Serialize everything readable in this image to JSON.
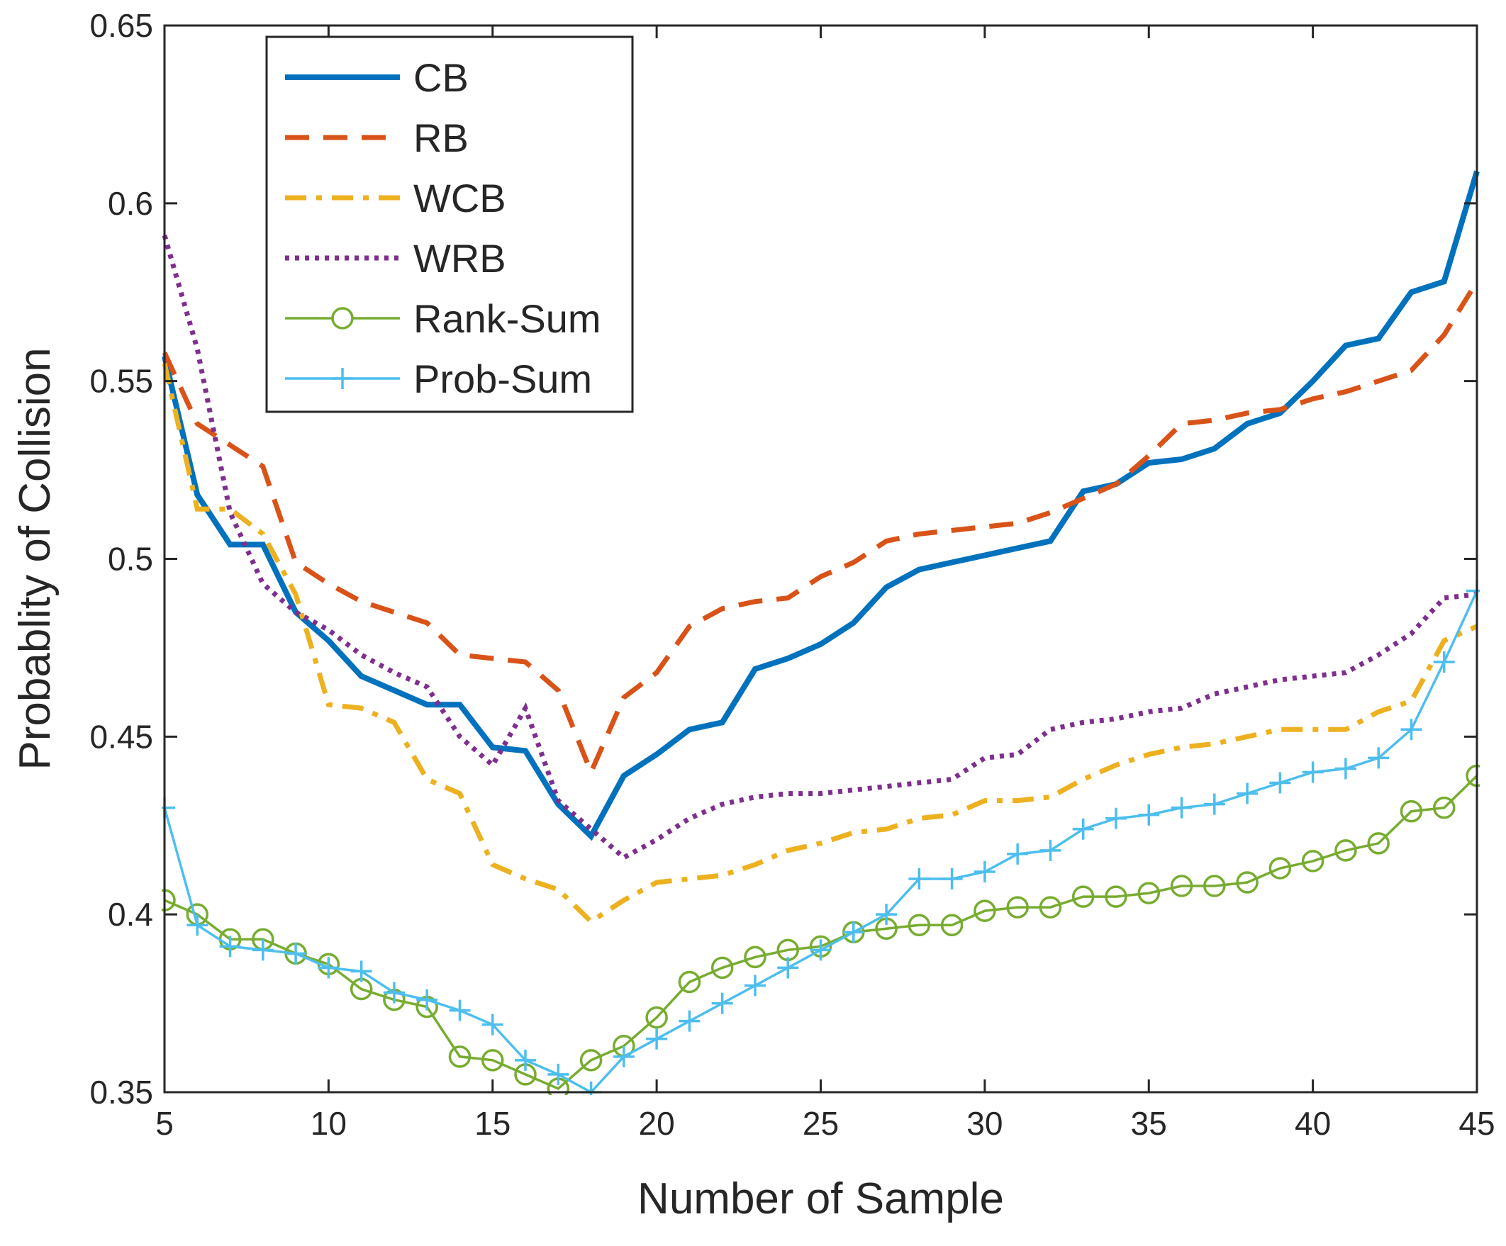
{
  "chart_data": {
    "type": "line",
    "title": "",
    "xlabel": "Number of Sample",
    "ylabel": "Probablity of Collision",
    "xlim": [
      5,
      45
    ],
    "ylim": [
      0.35,
      0.65
    ],
    "xticks": [
      "5",
      "10",
      "15",
      "20",
      "25",
      "30",
      "35",
      "40",
      "45"
    ],
    "yticks": [
      "0.35",
      "0.4",
      "0.45",
      "0.5",
      "0.55",
      "0.6",
      "0.65"
    ],
    "grid": false,
    "legend_position": "top-left",
    "x": [
      5,
      6,
      7,
      8,
      9,
      10,
      11,
      12,
      13,
      14,
      15,
      16,
      17,
      18,
      19,
      20,
      21,
      22,
      23,
      24,
      25,
      26,
      27,
      28,
      29,
      30,
      31,
      32,
      33,
      34,
      35,
      36,
      37,
      38,
      39,
      40,
      41,
      42,
      43,
      44,
      45
    ],
    "series": [
      {
        "name": "CB",
        "color": "#0072BD",
        "style": "solid-thick",
        "marker": "none",
        "values": [
          0.557,
          0.518,
          0.504,
          0.504,
          0.485,
          0.477,
          0.467,
          0.463,
          0.459,
          0.459,
          0.447,
          0.446,
          0.431,
          0.422,
          0.439,
          0.445,
          0.452,
          0.454,
          0.469,
          0.472,
          0.476,
          0.482,
          0.492,
          0.497,
          0.499,
          0.501,
          0.503,
          0.505,
          0.519,
          0.521,
          0.527,
          0.528,
          0.531,
          0.538,
          0.541,
          0.55,
          0.56,
          0.562,
          0.575,
          0.578,
          0.609
        ]
      },
      {
        "name": "RB",
        "color": "#D95319",
        "style": "dashed",
        "marker": "none",
        "values": [
          0.558,
          0.538,
          0.532,
          0.526,
          0.499,
          0.493,
          0.488,
          0.485,
          0.482,
          0.473,
          0.472,
          0.471,
          0.463,
          0.44,
          0.461,
          0.468,
          0.481,
          0.486,
          0.488,
          0.489,
          0.495,
          0.499,
          0.505,
          0.507,
          0.508,
          0.509,
          0.51,
          0.513,
          0.517,
          0.521,
          0.529,
          0.538,
          0.539,
          0.541,
          0.542,
          0.545,
          0.547,
          0.55,
          0.553,
          0.563,
          0.578
        ]
      },
      {
        "name": "WCB",
        "color": "#EDB120",
        "style": "dashdot",
        "marker": "none",
        "values": [
          0.555,
          0.514,
          0.514,
          0.507,
          0.49,
          0.459,
          0.458,
          0.454,
          0.438,
          0.434,
          0.414,
          0.41,
          0.407,
          0.398,
          0.404,
          0.409,
          0.41,
          0.411,
          0.414,
          0.418,
          0.42,
          0.423,
          0.424,
          0.427,
          0.428,
          0.432,
          0.432,
          0.433,
          0.438,
          0.442,
          0.445,
          0.447,
          0.448,
          0.45,
          0.452,
          0.452,
          0.452,
          0.457,
          0.46,
          0.477,
          0.481
        ]
      },
      {
        "name": "WRB",
        "color": "#7E2F8E",
        "style": "dotted",
        "marker": "none",
        "values": [
          0.591,
          0.559,
          0.513,
          0.493,
          0.485,
          0.48,
          0.473,
          0.468,
          0.464,
          0.45,
          0.442,
          0.458,
          0.432,
          0.424,
          0.416,
          0.421,
          0.427,
          0.431,
          0.433,
          0.434,
          0.434,
          0.435,
          0.436,
          0.437,
          0.438,
          0.444,
          0.445,
          0.452,
          0.454,
          0.455,
          0.457,
          0.458,
          0.462,
          0.464,
          0.466,
          0.467,
          0.468,
          0.473,
          0.479,
          0.489,
          0.49
        ]
      },
      {
        "name": "Rank-Sum",
        "color": "#77AC30",
        "style": "solid-thin",
        "marker": "circle",
        "values": [
          0.404,
          0.4,
          0.393,
          0.393,
          0.389,
          0.386,
          0.379,
          0.376,
          0.374,
          0.36,
          0.359,
          0.355,
          0.351,
          0.359,
          0.363,
          0.371,
          0.381,
          0.385,
          0.388,
          0.39,
          0.391,
          0.395,
          0.396,
          0.397,
          0.397,
          0.401,
          0.402,
          0.402,
          0.405,
          0.405,
          0.406,
          0.408,
          0.408,
          0.409,
          0.413,
          0.415,
          0.418,
          0.42,
          0.429,
          0.43,
          0.439
        ]
      },
      {
        "name": "Prob-Sum",
        "color": "#4DBEEE",
        "style": "solid-thin",
        "marker": "plus",
        "values": [
          0.43,
          0.397,
          0.391,
          0.39,
          0.389,
          0.385,
          0.384,
          0.378,
          0.376,
          0.373,
          0.369,
          0.359,
          0.355,
          0.35,
          0.36,
          0.365,
          0.37,
          0.375,
          0.38,
          0.385,
          0.39,
          0.395,
          0.4,
          0.41,
          0.41,
          0.412,
          0.417,
          0.418,
          0.424,
          0.427,
          0.428,
          0.43,
          0.431,
          0.434,
          0.437,
          0.44,
          0.441,
          0.444,
          0.452,
          0.471,
          0.491
        ]
      }
    ]
  }
}
